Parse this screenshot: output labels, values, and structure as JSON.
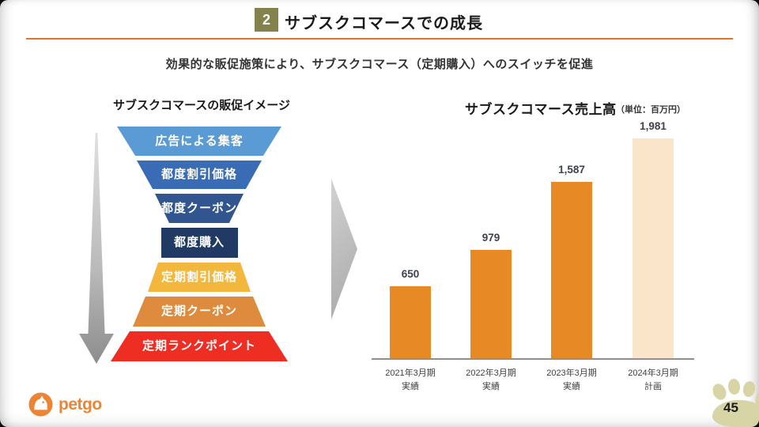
{
  "slide": {
    "badge_number": "2",
    "title": "サブスクコマースでの成長",
    "subtitle": "効果的な販促施策により、サブスクコマース（定期購入）へのスイッチを促進",
    "page_number": "45",
    "badge_color": "#83824D",
    "divider_color": "#E2732D"
  },
  "funnel": {
    "title": "サブスクコマースの販促イメージ",
    "layers": [
      {
        "label": "広告による集客",
        "color": "#5B9BD5"
      },
      {
        "label": "都度割引価格",
        "color": "#3A6CB5"
      },
      {
        "label": "都度クーポン",
        "color": "#31558F"
      },
      {
        "label": "都度購入",
        "color": "#203A63"
      },
      {
        "label": "定期割引価格",
        "color": "#F4B73D"
      },
      {
        "label": "定期クーポン",
        "color": "#DE8B3E"
      },
      {
        "label": "定期ランクポイント",
        "color": "#EE2D23"
      }
    ]
  },
  "chart_data": {
    "type": "bar",
    "title": "サブスクコマース売上高",
    "unit_label": "（単位：百万円）",
    "categories": [
      "2021年3月期",
      "2022年3月期",
      "2023年3月期",
      "2024年3月期"
    ],
    "category_sublabels": [
      "実績",
      "実績",
      "実績",
      "計画"
    ],
    "values": [
      650,
      979,
      1587,
      1981
    ],
    "value_labels": [
      "650",
      "979",
      "1,587",
      "1,981"
    ],
    "bar_colors": [
      "#E78A25",
      "#E78A25",
      "#E78A25",
      "#FAE5CB"
    ],
    "ylim": [
      0,
      2100
    ],
    "xlabel": "",
    "ylabel": "",
    "grid": false,
    "legend": false
  },
  "footer": {
    "logo_text": "petgo",
    "logo_color": "#EC8433",
    "paw_color": "#D7D4A5"
  }
}
